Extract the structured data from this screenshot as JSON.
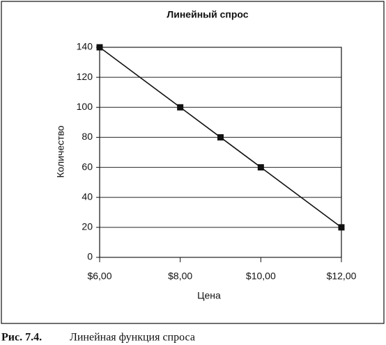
{
  "chart_data": {
    "type": "line",
    "title": "Линейный спрос",
    "x_label": "Цена",
    "y_label": "Количество",
    "x": [
      6,
      8,
      9,
      10,
      12
    ],
    "series": [
      {
        "color": "#111111",
        "values": [
          140,
          100,
          80,
          60,
          20
        ]
      }
    ],
    "xlim": [
      6,
      12
    ],
    "ylim": [
      0,
      140
    ],
    "xticks": [
      {
        "value": 6,
        "label": "$6,00"
      },
      {
        "value": 8,
        "label": "$8,00"
      },
      {
        "value": 10,
        "label": "$10,00"
      },
      {
        "value": 12,
        "label": "$12,00"
      }
    ],
    "yticks": [
      0,
      20,
      40,
      60,
      80,
      100,
      120,
      140
    ],
    "grid": true
  },
  "caption": {
    "label": "Рис. 7.4.",
    "text": "Линейная функция спроса"
  }
}
